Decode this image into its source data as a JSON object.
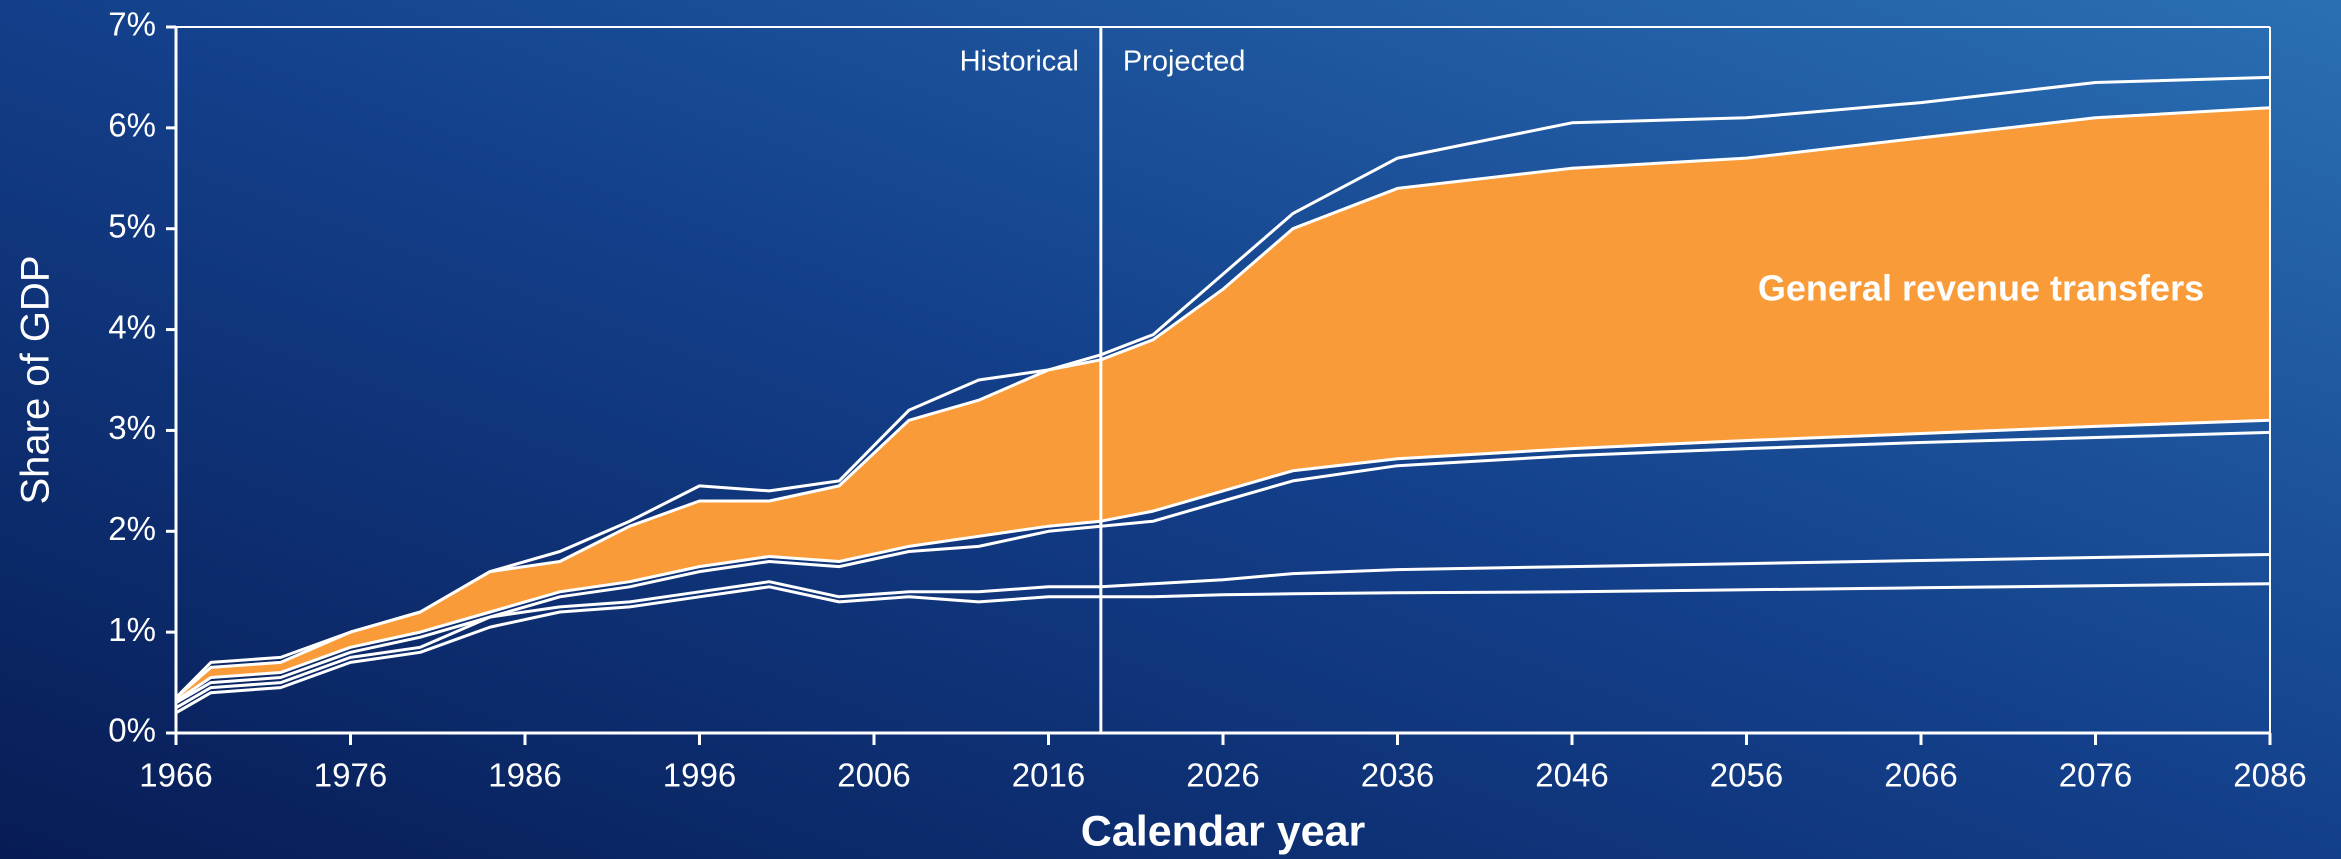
{
  "chart_data": {
    "type": "line",
    "xlabel": "Calendar year",
    "ylabel": "Share of GDP",
    "x": [
      1966,
      1968,
      1972,
      1976,
      1980,
      1984,
      1988,
      1992,
      1996,
      2000,
      2004,
      2008,
      2012,
      2016,
      2019,
      2022,
      2026,
      2030,
      2036,
      2046,
      2056,
      2066,
      2076,
      2086
    ],
    "series": [
      {
        "color": "#ffffff",
        "values": [
          0.2,
          0.4,
          0.45,
          0.7,
          0.8,
          1.05,
          1.2,
          1.25,
          1.35,
          1.45,
          1.3,
          1.35,
          1.3,
          1.35,
          1.35,
          1.35,
          1.37,
          1.38,
          1.39,
          1.4,
          1.42,
          1.44,
          1.46,
          1.48
        ]
      },
      {
        "color": "#ffffff",
        "values": [
          0.25,
          0.45,
          0.5,
          0.75,
          0.85,
          1.15,
          1.25,
          1.3,
          1.4,
          1.5,
          1.35,
          1.4,
          1.4,
          1.45,
          1.45,
          1.48,
          1.52,
          1.58,
          1.62,
          1.65,
          1.68,
          1.71,
          1.74,
          1.77
        ]
      },
      {
        "color": "#ffffff",
        "values": [
          0.3,
          0.5,
          0.55,
          0.8,
          0.95,
          1.15,
          1.35,
          1.45,
          1.6,
          1.7,
          1.65,
          1.8,
          1.85,
          2.0,
          2.05,
          2.1,
          2.3,
          2.5,
          2.65,
          2.75,
          2.82,
          2.88,
          2.93,
          2.98
        ]
      },
      {
        "color": "#ffffff",
        "values": [
          0.32,
          0.55,
          0.6,
          0.85,
          1.0,
          1.2,
          1.4,
          1.5,
          1.65,
          1.75,
          1.7,
          1.85,
          1.95,
          2.05,
          2.1,
          2.2,
          2.4,
          2.6,
          2.72,
          2.82,
          2.9,
          2.97,
          3.04,
          3.1
        ]
      },
      {
        "name": "General revenue transfers",
        "color": "#ffffff",
        "fill": "#f99b38",
        "values": [
          0.35,
          0.65,
          0.7,
          1.0,
          1.2,
          1.6,
          1.7,
          2.05,
          2.3,
          2.3,
          2.45,
          3.1,
          3.3,
          3.6,
          3.7,
          3.9,
          4.4,
          5.0,
          5.4,
          5.6,
          5.7,
          5.9,
          6.1,
          6.2
        ]
      },
      {
        "color": "#ffffff",
        "values": [
          0.35,
          0.7,
          0.75,
          1.0,
          1.2,
          1.6,
          1.8,
          2.1,
          2.45,
          2.4,
          2.5,
          3.2,
          3.5,
          3.6,
          3.75,
          3.95,
          4.55,
          5.15,
          5.7,
          6.05,
          6.1,
          6.25,
          6.45,
          6.5
        ]
      }
    ],
    "divider": {
      "x": 2019,
      "left_label": "Historical",
      "right_label": "Projected"
    },
    "xlim": [
      1966,
      2086
    ],
    "xticks": [
      1966,
      1976,
      1986,
      1996,
      2006,
      2016,
      2026,
      2036,
      2046,
      2056,
      2066,
      2076,
      2086
    ],
    "ylim": [
      0,
      7
    ],
    "yticks": [
      {
        "value": 0,
        "label": "0%"
      },
      {
        "value": 1,
        "label": "1%"
      },
      {
        "value": 2,
        "label": "2%"
      },
      {
        "value": 3,
        "label": "3%"
      },
      {
        "value": 4,
        "label": "4%"
      },
      {
        "value": 5,
        "label": "5%"
      },
      {
        "value": 6,
        "label": "6%"
      },
      {
        "value": 7,
        "label": "7%"
      }
    ]
  }
}
